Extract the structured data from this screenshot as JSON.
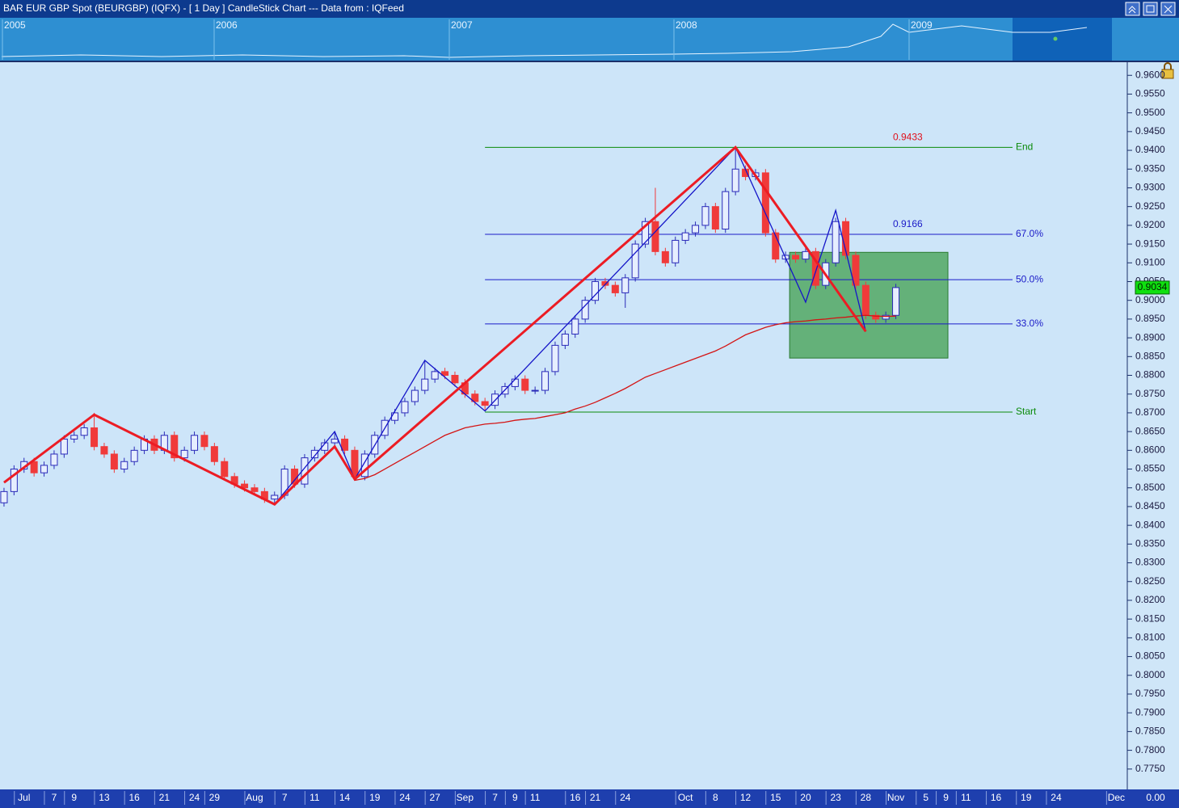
{
  "window": {
    "title": "BAR EUR GBP Spot (BEURGBP) (IQFX) -  [ 1 Day ] CandleStick Chart --- Data from : IQFeed",
    "overview_years": [
      "2005",
      "2006",
      "2007",
      "2008",
      "2009"
    ],
    "corner_value": "0.00"
  },
  "chart_data": {
    "type": "candlestick",
    "categories": [
      null,
      null,
      "Jul",
      null,
      null,
      "7",
      null,
      "9",
      null,
      null,
      "13",
      null,
      null,
      "16",
      null,
      null,
      "21",
      null,
      null,
      "24",
      null,
      "29",
      null,
      null,
      null,
      "Aug",
      null,
      null,
      "7",
      null,
      null,
      "11",
      null,
      null,
      "14",
      null,
      null,
      "19",
      null,
      null,
      "24",
      null,
      null,
      "27",
      null,
      null,
      "Sep",
      null,
      null,
      "7",
      null,
      "9",
      null,
      "11",
      null,
      null,
      null,
      "16",
      null,
      "21",
      null,
      null,
      "24",
      null,
      null,
      null,
      null,
      null,
      "Oct",
      null,
      null,
      "8",
      null,
      null,
      "12",
      null,
      null,
      "15",
      null,
      null,
      "20",
      null,
      null,
      "23",
      null,
      null,
      "28",
      null,
      null,
      "Nov",
      null,
      null,
      "5",
      null,
      "9",
      null,
      "11",
      null,
      null,
      "16",
      null,
      null,
      "19",
      null,
      null,
      "24",
      null,
      null,
      null,
      null,
      null,
      "Dec"
    ],
    "open": [
      0.846,
      0.849,
      0.855,
      0.857,
      0.854,
      0.856,
      0.859,
      0.863,
      0.864,
      0.866,
      0.861,
      0.859,
      0.855,
      0.857,
      0.86,
      0.863,
      0.86,
      0.864,
      0.858,
      0.86,
      0.864,
      0.861,
      0.857,
      0.853,
      0.851,
      0.85,
      0.849,
      0.847,
      0.848,
      0.855,
      0.851,
      0.858,
      0.86,
      0.862,
      0.863,
      0.86,
      0.853,
      0.859,
      0.864,
      0.868,
      0.87,
      0.873,
      0.876,
      0.879,
      0.881,
      0.88,
      0.878,
      0.875,
      0.873,
      0.872,
      0.875,
      0.877,
      0.879,
      0.876,
      0.876,
      0.881,
      0.888,
      0.891,
      0.895,
      0.9,
      0.905,
      0.904,
      0.902,
      0.906,
      0.915,
      0.921,
      0.913,
      0.91,
      0.916,
      0.918,
      0.92,
      0.925,
      0.919,
      0.929,
      0.935,
      0.933,
      0.934,
      0.918,
      0.911,
      0.912,
      0.911,
      0.913,
      0.904,
      0.91,
      0.921,
      0.912,
      0.904,
      0.896,
      0.895,
      0.896,
      null,
      null,
      null,
      null,
      null,
      null,
      null,
      null,
      null,
      null,
      null,
      null,
      null,
      null,
      null,
      null,
      null,
      null,
      null,
      null,
      null,
      null
    ],
    "high": [
      0.85,
      0.856,
      0.858,
      0.858,
      0.857,
      0.86,
      0.864,
      0.865,
      0.867,
      0.87,
      0.862,
      0.86,
      0.858,
      0.861,
      0.864,
      0.864,
      0.865,
      0.865,
      0.861,
      0.865,
      0.865,
      0.862,
      0.858,
      0.854,
      0.852,
      0.851,
      0.85,
      0.849,
      0.856,
      0.856,
      0.859,
      0.861,
      0.863,
      0.865,
      0.864,
      0.861,
      0.86,
      0.865,
      0.869,
      0.871,
      0.874,
      0.877,
      0.884,
      0.882,
      0.882,
      0.881,
      0.879,
      0.876,
      0.874,
      0.876,
      0.878,
      0.88,
      0.88,
      0.877,
      0.882,
      0.889,
      0.892,
      0.896,
      0.901,
      0.906,
      0.906,
      0.905,
      0.907,
      0.916,
      0.922,
      0.93,
      0.914,
      0.917,
      0.919,
      0.921,
      0.926,
      0.926,
      0.93,
      0.9408,
      0.936,
      0.935,
      0.935,
      0.919,
      0.913,
      0.913,
      0.914,
      0.914,
      0.911,
      0.922,
      0.922,
      0.913,
      0.905,
      0.897,
      0.897,
      0.9044,
      null,
      null,
      null,
      null,
      null,
      null,
      null,
      null,
      null,
      null,
      null,
      null,
      null,
      null,
      null,
      null,
      null,
      null,
      null,
      null,
      null,
      null
    ],
    "low": [
      0.845,
      0.848,
      0.854,
      0.853,
      0.853,
      0.855,
      0.858,
      0.862,
      0.863,
      0.86,
      0.858,
      0.854,
      0.854,
      0.856,
      0.859,
      0.859,
      0.859,
      0.857,
      0.857,
      0.859,
      0.86,
      0.856,
      0.852,
      0.85,
      0.849,
      0.848,
      0.846,
      0.8456,
      0.847,
      0.85,
      0.85,
      0.857,
      0.859,
      0.861,
      0.859,
      0.852,
      0.852,
      0.858,
      0.863,
      0.867,
      0.869,
      0.872,
      0.875,
      0.878,
      0.879,
      0.877,
      0.874,
      0.872,
      0.8705,
      0.871,
      0.874,
      0.876,
      0.875,
      0.875,
      0.875,
      0.88,
      0.887,
      0.89,
      0.894,
      0.899,
      0.903,
      0.901,
      0.898,
      0.905,
      0.914,
      0.912,
      0.909,
      0.909,
      0.915,
      0.917,
      0.919,
      0.918,
      0.918,
      0.928,
      0.932,
      0.932,
      0.917,
      0.91,
      0.91,
      0.91,
      0.91,
      0.903,
      0.903,
      0.909,
      0.911,
      0.903,
      0.895,
      0.894,
      0.894,
      0.895,
      null,
      null,
      null,
      null,
      null,
      null,
      null,
      null,
      null,
      null,
      null,
      null,
      null,
      null,
      null,
      null,
      null,
      null,
      null,
      null,
      null,
      null
    ],
    "close": [
      0.849,
      0.855,
      0.857,
      0.854,
      0.856,
      0.859,
      0.863,
      0.864,
      0.866,
      0.861,
      0.859,
      0.855,
      0.857,
      0.86,
      0.863,
      0.86,
      0.864,
      0.858,
      0.86,
      0.864,
      0.861,
      0.857,
      0.853,
      0.851,
      0.85,
      0.849,
      0.847,
      0.848,
      0.855,
      0.851,
      0.858,
      0.86,
      0.862,
      0.863,
      0.86,
      0.853,
      0.859,
      0.864,
      0.868,
      0.87,
      0.873,
      0.876,
      0.879,
      0.881,
      0.88,
      0.878,
      0.875,
      0.873,
      0.872,
      0.875,
      0.877,
      0.879,
      0.876,
      0.876,
      0.881,
      0.888,
      0.891,
      0.895,
      0.9,
      0.905,
      0.904,
      0.902,
      0.906,
      0.915,
      0.921,
      0.913,
      0.91,
      0.916,
      0.918,
      0.92,
      0.925,
      0.919,
      0.929,
      0.935,
      0.933,
      0.934,
      0.918,
      0.911,
      0.912,
      0.911,
      0.913,
      0.904,
      0.91,
      0.921,
      0.912,
      0.904,
      0.896,
      0.895,
      0.896,
      0.9034,
      null,
      null,
      null,
      null,
      null,
      null,
      null,
      null,
      null,
      null,
      null,
      null,
      null,
      null,
      null,
      null,
      null,
      null,
      null,
      null,
      null,
      null
    ],
    "up_color": "#2a2ab8",
    "up_fill": "#e6eeff",
    "down_color": "#f03a3a",
    "ma": {
      "color": "#d41414",
      "values": [
        null,
        null,
        null,
        null,
        null,
        null,
        null,
        null,
        null,
        null,
        null,
        null,
        null,
        null,
        null,
        null,
        null,
        null,
        null,
        null,
        null,
        null,
        null,
        null,
        null,
        null,
        null,
        null,
        null,
        null,
        null,
        null,
        null,
        null,
        null,
        0.852,
        0.8525,
        0.8535,
        0.855,
        0.8565,
        0.858,
        0.8595,
        0.861,
        0.8625,
        0.864,
        0.865,
        0.866,
        0.8665,
        0.867,
        0.8672,
        0.8675,
        0.868,
        0.8683,
        0.8685,
        0.869,
        0.8695,
        0.87,
        0.871,
        0.8718,
        0.8728,
        0.874,
        0.8752,
        0.8765,
        0.878,
        0.8795,
        0.8805,
        0.8815,
        0.8825,
        0.8835,
        0.8845,
        0.8855,
        0.8865,
        0.8878,
        0.8893,
        0.8908,
        0.8918,
        0.8928,
        0.8935,
        0.894,
        0.8943,
        0.8945,
        0.8948,
        0.895,
        0.8953,
        0.8955,
        0.8958,
        0.896,
        0.8958,
        0.8957,
        0.8958,
        null,
        null,
        null,
        null,
        null,
        null,
        null,
        null,
        null,
        null,
        null,
        null,
        null,
        null,
        null,
        null,
        null,
        null,
        null,
        null,
        null,
        null
      ]
    },
    "zigzags": [
      {
        "color": "#1414c8",
        "width": 1.3,
        "x": [
          27,
          33,
          35,
          42,
          48,
          73,
          80,
          83,
          86
        ],
        "values": [
          0.8456,
          0.865,
          0.8523,
          0.884,
          0.8705,
          0.9408,
          0.8995,
          0.924,
          0.8917
        ]
      },
      {
        "color": "#ec1c24",
        "width": 3,
        "x": [
          0,
          9,
          27,
          33,
          35,
          73,
          86
        ],
        "values": [
          0.8514,
          0.8695,
          0.8456,
          0.861,
          0.8523,
          0.9408,
          0.8917
        ]
      }
    ],
    "zone": {
      "color": "#3c9c46",
      "x": [
        78.4,
        94.2
      ],
      "values": [
        0.9128,
        0.8846
      ]
    },
    "levels": [
      {
        "label": "End",
        "value": 0.9408,
        "color": "#0a8a0a"
      },
      {
        "label": "67.0%",
        "value": 0.9176,
        "color": "#1a1ac8"
      },
      {
        "label": "50.0%",
        "value": 0.9055,
        "color": "#1a1ac8"
      },
      {
        "label": "33.0%",
        "value": 0.8937,
        "color": "#1a1ac8"
      },
      {
        "label": "Start",
        "value": 0.8702,
        "color": "#0a8a0a"
      }
    ],
    "price_labels": [
      {
        "text": "0.9433",
        "color": "#e0101c"
      },
      {
        "text": "0.9166",
        "color": "#1a1ac8"
      }
    ],
    "last_price": 0.9034,
    "ylim": [
      0.77,
      0.9635
    ],
    "yticks": [
      {
        "value": 0.96,
        "label": "0.9600"
      },
      {
        "value": 0.955,
        "label": "0.9550"
      },
      {
        "value": 0.95,
        "label": "0.9500"
      },
      {
        "value": 0.945,
        "label": "0.9450"
      },
      {
        "value": 0.94,
        "label": "0.9400"
      },
      {
        "value": 0.935,
        "label": "0.9350"
      },
      {
        "value": 0.93,
        "label": "0.9300"
      },
      {
        "value": 0.925,
        "label": "0.9250"
      },
      {
        "value": 0.92,
        "label": "0.9200"
      },
      {
        "value": 0.915,
        "label": "0.9150"
      },
      {
        "value": 0.91,
        "label": "0.9100"
      },
      {
        "value": 0.905,
        "label": "0.9050"
      },
      {
        "value": 0.9,
        "label": "0.9000"
      },
      {
        "value": 0.895,
        "label": "0.8950"
      },
      {
        "value": 0.89,
        "label": "0.8900"
      },
      {
        "value": 0.885,
        "label": "0.8850"
      },
      {
        "value": 0.88,
        "label": "0.8800"
      },
      {
        "value": 0.875,
        "label": "0.8750"
      },
      {
        "value": 0.87,
        "label": "0.8700"
      },
      {
        "value": 0.865,
        "label": "0.8650"
      },
      {
        "value": 0.86,
        "label": "0.8600"
      },
      {
        "value": 0.855,
        "label": "0.8550"
      },
      {
        "value": 0.85,
        "label": "0.8500"
      },
      {
        "value": 0.845,
        "label": "0.8450"
      },
      {
        "value": 0.84,
        "label": "0.8400"
      },
      {
        "value": 0.835,
        "label": "0.8350"
      },
      {
        "value": 0.83,
        "label": "0.8300"
      },
      {
        "value": 0.825,
        "label": "0.8250"
      },
      {
        "value": 0.82,
        "label": "0.8200"
      },
      {
        "value": 0.815,
        "label": "0.8150"
      },
      {
        "value": 0.81,
        "label": "0.8100"
      },
      {
        "value": 0.805,
        "label": "0.8050"
      },
      {
        "value": 0.8,
        "label": "0.8000"
      },
      {
        "value": 0.795,
        "label": "0.7950"
      },
      {
        "value": 0.79,
        "label": "0.7900"
      },
      {
        "value": 0.785,
        "label": "0.7850"
      },
      {
        "value": 0.78,
        "label": "0.7800"
      },
      {
        "value": 0.775,
        "label": "0.7750"
      }
    ]
  }
}
